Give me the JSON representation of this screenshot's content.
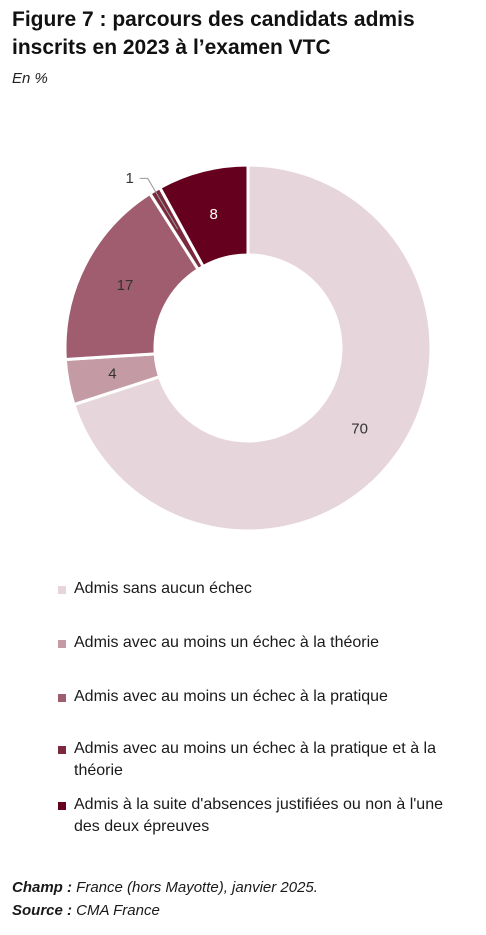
{
  "title": "Figure 7 : parcours des candidats admis inscrits en 2023 à l’examen VTC",
  "subtitle": "En %",
  "chart_data": {
    "type": "pie",
    "variant": "donut",
    "unit": "%",
    "start": "top, clockwise",
    "categories": [
      "Admis sans aucun échec",
      "Admis avec au moins un échec à la théorie",
      "Admis avec au moins un échec à la pratique",
      "Admis avec au moins un échec à la pratique et à la théorie",
      "Admis à la suite d'absences justifiées ou non à l'une des deux épreuves"
    ],
    "values": [
      70,
      4,
      17,
      1,
      8
    ],
    "data_labels": [
      "70",
      "4",
      "17",
      "1",
      "8"
    ],
    "colors": [
      "#e6d5da",
      "#c49ba4",
      "#a05d70",
      "#7a2a3c",
      "#66001f"
    ],
    "label_colors": [
      "#333333",
      "#333333",
      "#333333",
      "#333333",
      "#ffffff"
    ],
    "legend_position": "bottom"
  },
  "footer": {
    "champ_label": "Champ :",
    "champ_text": " France (hors Mayotte), janvier 2025.",
    "source_label": "Source :",
    "source_text": " CMA France"
  }
}
